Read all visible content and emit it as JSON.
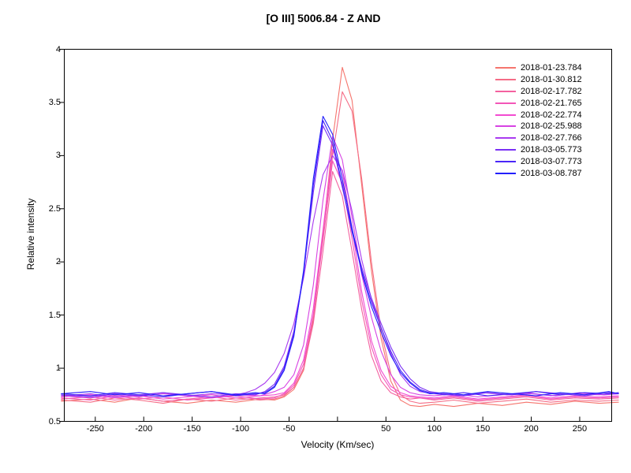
{
  "chart_data": {
    "type": "line",
    "title": "[O III] 5006.84 - Z AND",
    "xlabel": "Velocity (Km/sec)",
    "ylabel": "Relative intensity",
    "x_range": [
      -282,
      283
    ],
    "y_range": [
      0.5,
      4
    ],
    "grid": false,
    "legend_position": "top-right",
    "frame": "full-box",
    "axis_color": "#000000",
    "x_ticks": [
      {
        "v": -250,
        "label": "-250"
      },
      {
        "v": -200,
        "label": "-200"
      },
      {
        "v": -150,
        "label": "-150"
      },
      {
        "v": -100,
        "label": "-100"
      },
      {
        "v": -50,
        "label": "-50"
      },
      {
        "v": 0,
        "label": ""
      },
      {
        "v": 50,
        "label": "50"
      },
      {
        "v": 100,
        "label": "100"
      },
      {
        "v": 150,
        "label": "150"
      },
      {
        "v": 200,
        "label": "200"
      },
      {
        "v": 250,
        "label": "250"
      }
    ],
    "y_ticks": [
      {
        "v": 0.5,
        "label": "0.5"
      },
      {
        "v": 1,
        "label": "1"
      },
      {
        "v": 1.5,
        "label": "1.5"
      },
      {
        "v": 2,
        "label": "2"
      },
      {
        "v": 2.5,
        "label": "2.5"
      },
      {
        "v": 3,
        "label": "3"
      },
      {
        "v": 3.5,
        "label": "3.5"
      },
      {
        "v": 4,
        "label": "4"
      }
    ],
    "x_grids": {
      "A": [
        -285,
        -255,
        -230,
        -205,
        -180,
        -155,
        -130,
        -105,
        -80,
        -65,
        -55,
        -45,
        -35,
        -25,
        -15,
        -5,
        5,
        15,
        25,
        35,
        45,
        55,
        65,
        75,
        85,
        100,
        120,
        145,
        170,
        195,
        220,
        245,
        270,
        290
      ],
      "B": [
        -285,
        -255,
        -230,
        -205,
        -180,
        -155,
        -130,
        -105,
        -85,
        -75,
        -65,
        -55,
        -45,
        -35,
        -25,
        -15,
        -5,
        5,
        15,
        25,
        35,
        45,
        55,
        65,
        75,
        85,
        95,
        110,
        130,
        155,
        180,
        205,
        230,
        255,
        280,
        290
      ],
      "C": [
        -285,
        -255,
        -230,
        -205,
        -180,
        -155,
        -130,
        -105,
        -95,
        -85,
        -75,
        -65,
        -55,
        -45,
        -35,
        -25,
        -15,
        -5,
        5,
        15,
        25,
        35,
        45,
        55,
        65,
        75,
        85,
        100,
        125,
        150,
        175,
        200,
        225,
        250,
        275,
        290
      ]
    },
    "series": [
      {
        "name": "2018-01-23.784",
        "color": "#F5756D",
        "x_grid": "A",
        "y": [
          0.69,
          0.71,
          0.68,
          0.72,
          0.69,
          0.67,
          0.7,
          0.68,
          0.71,
          0.7,
          0.73,
          0.8,
          0.98,
          1.45,
          2.25,
          3.15,
          3.83,
          3.52,
          2.72,
          1.92,
          1.28,
          0.88,
          0.7,
          0.65,
          0.64,
          0.66,
          0.64,
          0.67,
          0.65,
          0.68,
          0.66,
          0.69,
          0.67,
          0.68
        ]
      },
      {
        "name": "2018-01-30.812",
        "color": "#F56C86",
        "x_grid": "A",
        "y": [
          0.7,
          0.68,
          0.72,
          0.7,
          0.67,
          0.71,
          0.69,
          0.72,
          0.7,
          0.71,
          0.74,
          0.82,
          1.0,
          1.48,
          2.28,
          3.0,
          3.6,
          3.42,
          2.78,
          2.0,
          1.35,
          0.95,
          0.75,
          0.69,
          0.67,
          0.68,
          0.7,
          0.67,
          0.69,
          0.71,
          0.68,
          0.7,
          0.69,
          0.7
        ]
      },
      {
        "name": "2018-02-17.782",
        "color": "#F4619F",
        "x_grid": "A",
        "y": [
          0.71,
          0.73,
          0.7,
          0.72,
          0.69,
          0.71,
          0.73,
          0.7,
          0.72,
          0.73,
          0.75,
          0.82,
          1.0,
          1.42,
          2.1,
          2.85,
          2.62,
          2.1,
          1.55,
          1.12,
          0.88,
          0.77,
          0.73,
          0.71,
          0.72,
          0.7,
          0.72,
          0.69,
          0.71,
          0.73,
          0.7,
          0.72,
          0.71,
          0.72
        ]
      },
      {
        "name": "2018-02-21.765",
        "color": "#F356B8",
        "x_grid": "A",
        "y": [
          0.72,
          0.7,
          0.74,
          0.71,
          0.73,
          0.7,
          0.72,
          0.74,
          0.71,
          0.72,
          0.76,
          0.84,
          1.04,
          1.5,
          2.2,
          2.95,
          2.74,
          2.22,
          1.64,
          1.2,
          0.94,
          0.8,
          0.75,
          0.73,
          0.72,
          0.71,
          0.73,
          0.7,
          0.72,
          0.74,
          0.71,
          0.73,
          0.72,
          0.73
        ]
      },
      {
        "name": "2018-02-22.774",
        "color": "#F24BD1",
        "x_grid": "A",
        "y": [
          0.73,
          0.75,
          0.72,
          0.74,
          0.71,
          0.73,
          0.75,
          0.72,
          0.74,
          0.75,
          0.77,
          0.86,
          1.08,
          1.56,
          2.3,
          3.06,
          2.85,
          2.32,
          1.72,
          1.26,
          0.98,
          0.83,
          0.77,
          0.74,
          0.73,
          0.72,
          0.74,
          0.71,
          0.73,
          0.75,
          0.72,
          0.74,
          0.73,
          0.74
        ]
      },
      {
        "name": "2018-02-25.988",
        "color": "#D743E3",
        "x_grid": "A",
        "y": [
          0.74,
          0.72,
          0.75,
          0.73,
          0.76,
          0.74,
          0.72,
          0.75,
          0.74,
          0.78,
          0.82,
          0.94,
          1.22,
          1.78,
          2.58,
          3.18,
          2.96,
          2.42,
          1.88,
          1.48,
          1.16,
          0.94,
          0.82,
          0.77,
          0.75,
          0.74,
          0.76,
          0.73,
          0.75,
          0.77,
          0.74,
          0.76,
          0.75,
          0.76
        ]
      },
      {
        "name": "2018-02-27.766",
        "color": "#A93BF0",
        "x_grid": "C",
        "y": [
          0.74,
          0.76,
          0.73,
          0.75,
          0.77,
          0.74,
          0.76,
          0.75,
          0.77,
          0.8,
          0.86,
          0.96,
          1.14,
          1.42,
          1.85,
          2.38,
          2.82,
          3.0,
          2.86,
          2.48,
          2.02,
          1.65,
          1.38,
          1.14,
          0.94,
          0.83,
          0.78,
          0.76,
          0.74,
          0.77,
          0.75,
          0.76,
          0.74,
          0.77,
          0.75,
          0.76
        ]
      },
      {
        "name": "2018-03-05.773",
        "color": "#7A30F4",
        "x_grid": "B",
        "y": [
          0.75,
          0.73,
          0.76,
          0.74,
          0.77,
          0.75,
          0.73,
          0.76,
          0.75,
          0.78,
          0.85,
          1.02,
          1.35,
          1.9,
          2.65,
          3.28,
          3.1,
          2.7,
          2.3,
          1.95,
          1.66,
          1.42,
          1.2,
          1.02,
          0.9,
          0.82,
          0.78,
          0.76,
          0.74,
          0.77,
          0.75,
          0.78,
          0.76,
          0.74,
          0.77,
          0.76
        ]
      },
      {
        "name": "2018-03-07.773",
        "color": "#4A26F8",
        "x_grid": "B",
        "y": [
          0.76,
          0.74,
          0.77,
          0.75,
          0.73,
          0.76,
          0.78,
          0.74,
          0.76,
          0.77,
          0.83,
          1.0,
          1.32,
          1.88,
          2.72,
          3.33,
          3.14,
          2.72,
          2.28,
          1.92,
          1.62,
          1.38,
          1.16,
          0.98,
          0.87,
          0.8,
          0.77,
          0.75,
          0.77,
          0.74,
          0.76,
          0.78,
          0.75,
          0.77,
          0.76,
          0.77
        ]
      },
      {
        "name": "2018-03-08.787",
        "color": "#2320FB",
        "x_grid": "B",
        "y": [
          0.76,
          0.78,
          0.75,
          0.77,
          0.74,
          0.76,
          0.78,
          0.75,
          0.77,
          0.76,
          0.82,
          0.98,
          1.3,
          1.92,
          2.78,
          3.37,
          3.2,
          2.78,
          2.32,
          1.9,
          1.58,
          1.34,
          1.12,
          0.96,
          0.86,
          0.79,
          0.76,
          0.77,
          0.75,
          0.78,
          0.76,
          0.74,
          0.77,
          0.75,
          0.78,
          0.76
        ]
      }
    ]
  }
}
